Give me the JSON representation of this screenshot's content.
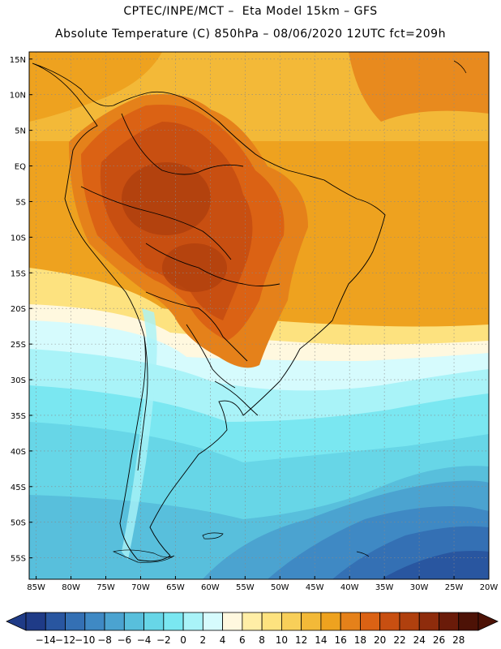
{
  "header": {
    "line1": "CPTEC/INPE/MCT –  Eta Model 15km – GFS",
    "line2": "Absolute Temperature (C) 850hPa – 08/06/2020 12UTC fct=209h"
  },
  "map": {
    "lat_labels": [
      "15N",
      "10N",
      "5N",
      "EQ",
      "5S",
      "10S",
      "15S",
      "20S",
      "25S",
      "30S",
      "35S",
      "40S",
      "45S",
      "50S",
      "55S"
    ],
    "lon_labels": [
      "85W",
      "80W",
      "75W",
      "70W",
      "65W",
      "60W",
      "55W",
      "50W",
      "45W",
      "40W",
      "35W",
      "30W",
      "25W",
      "20W"
    ],
    "lat_range": [
      -58,
      16
    ],
    "lon_range": [
      -86,
      -20
    ]
  },
  "colorbar": {
    "labels": [
      "-14",
      "-12",
      "-10",
      "-8",
      "-6",
      "-4",
      "-2",
      "0",
      "2",
      "4",
      "6",
      "8",
      "10",
      "12",
      "14",
      "16",
      "18",
      "20",
      "22",
      "24",
      "26",
      "28"
    ],
    "colors": [
      "#1f3b87",
      "#2956a0",
      "#3470b4",
      "#3f89c4",
      "#4ba3d0",
      "#58bfdc",
      "#67d6e7",
      "#7ae7f1",
      "#a9f3f8",
      "#d6fbfd",
      "#fff8df",
      "#ffeea6",
      "#fde27f",
      "#f8cf59",
      "#f3b938",
      "#eea21f",
      "#e5811a",
      "#db6214",
      "#c84f11",
      "#b0400e",
      "#8e2c0c",
      "#6a1b09",
      "#4d1206"
    ]
  }
}
